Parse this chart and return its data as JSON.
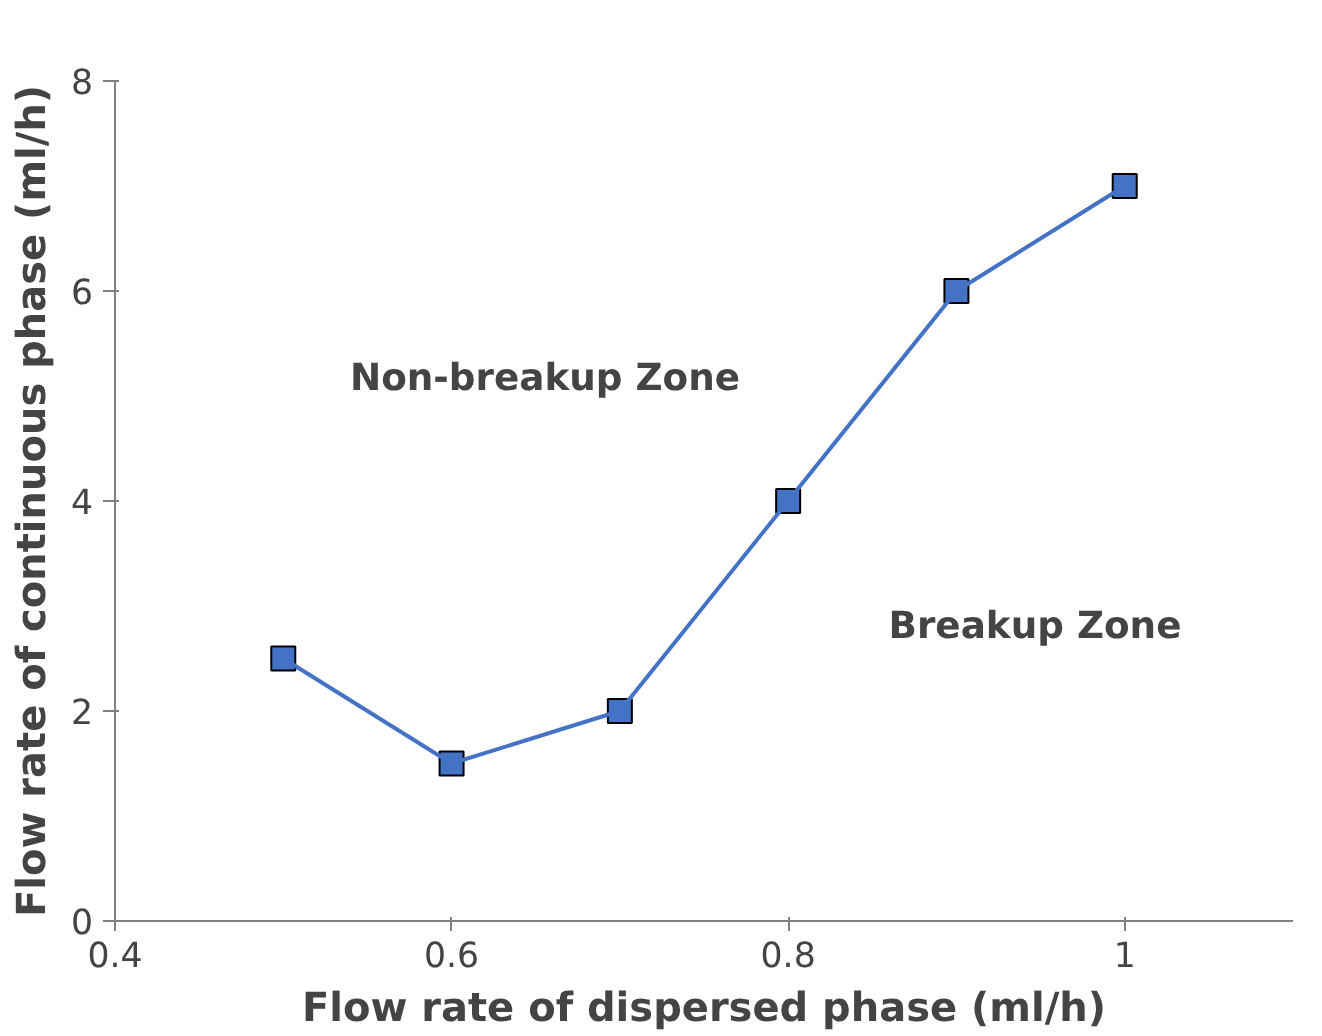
{
  "chart_data": {
    "type": "line",
    "xlabel": "Flow rate of dispersed phase (ml/h)",
    "ylabel": "Flow rate of continuous phase (ml/h)",
    "x": [
      0.5,
      0.6,
      0.7,
      0.8,
      0.9,
      1
    ],
    "series": [
      {
        "color": "#4472c4",
        "values": [
          2.5,
          1.5,
          2,
          4,
          6,
          7
        ]
      }
    ],
    "xlim": [
      0.4,
      1.1
    ],
    "xticks": [
      0.4,
      0.6,
      0.8,
      1
    ],
    "ylim": [
      0,
      8
    ],
    "yticks": [
      0,
      2,
      4,
      6,
      8
    ],
    "marker": "square",
    "line_style": "solid",
    "grid": false,
    "annotations": [
      "Non-breakup Zone",
      "Breakup Zone"
    ]
  }
}
